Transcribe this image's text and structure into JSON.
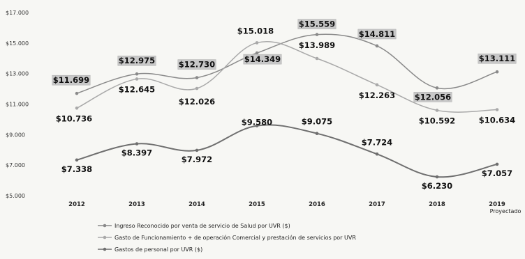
{
  "chart_data": {
    "type": "line",
    "categories": [
      "2012",
      "2013",
      "2014",
      "2015",
      "2016",
      "2017",
      "2018",
      "2019"
    ],
    "category_sublabels": [
      "",
      "",
      "",
      "",
      "",
      "",
      "",
      "Proyectado"
    ],
    "y_ticks": [
      "$17.000",
      "$15.000",
      "$13.000",
      "$11.000",
      "$9.000",
      "$7.000",
      "$5.000"
    ],
    "ylim": [
      5000,
      17000
    ],
    "grid": false,
    "legend_position": "bottom",
    "series": [
      {
        "name": "Ingreso Reconocido por venta de servicio de Salud por UVR ($)",
        "values": [
          11699,
          12975,
          12730,
          14349,
          15559,
          14811,
          12056,
          13111
        ],
        "labels": [
          "$11.699",
          "$12.975",
          "$12.730",
          "$14.349",
          "$15.559",
          "$14.811",
          "$12.056",
          "$13.111"
        ],
        "color": "#8a8a8a",
        "label_box": true
      },
      {
        "name": "Gasto de Funcionamiento + de operación Comercial y prestación de servicios por UVR",
        "values": [
          10736,
          12645,
          12026,
          15018,
          13989,
          12263,
          10592,
          10634
        ],
        "labels": [
          "$10.736",
          "$12.645",
          "$12.026",
          "$15.018",
          "$13.989",
          "$12.263",
          "$10.592",
          "$10.634"
        ],
        "color": "#a9a9a9",
        "label_box": false
      },
      {
        "name": "Gastos de personal por UVR ($)",
        "values": [
          7338,
          8397,
          7972,
          9580,
          9075,
          7724,
          6230,
          7057
        ],
        "labels": [
          "$7.338",
          "$8.397",
          "$7.972",
          "$9.580",
          "$9.075",
          "$7.724",
          "$6.230",
          "$7.057"
        ],
        "color": "#6f6f6f",
        "label_box": false
      }
    ]
  }
}
